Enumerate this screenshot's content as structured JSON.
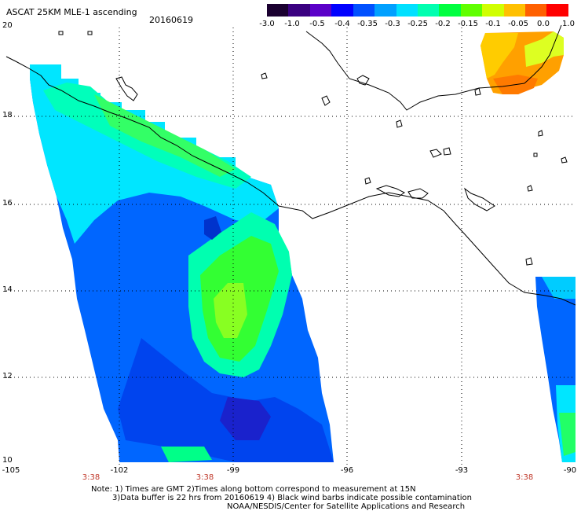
{
  "title": "ASCAT 25KM MLE-1 ascending",
  "date": "20160619",
  "colorbar": {
    "labels": [
      "-3.0",
      "-1.0",
      "-0.5",
      "-0.4",
      "-0.35",
      "-0.3",
      "-0.25",
      "-0.2",
      "-0.15",
      "-0.1",
      "-0.05",
      "0.0",
      "1.0"
    ],
    "colors": [
      "#1a0030",
      "#3a0080",
      "#5a00c8",
      "#0000ff",
      "#0050ff",
      "#00a0ff",
      "#00e0ff",
      "#00ffb0",
      "#00ff40",
      "#60ff00",
      "#d0ff00",
      "#ffc000",
      "#ff6000",
      "#ff0000"
    ]
  },
  "axes": {
    "x_labels": [
      "-105",
      "-102",
      "-99",
      "-96",
      "-93",
      "-90"
    ],
    "y_labels": [
      "20",
      "18",
      "16",
      "14",
      "12",
      "10"
    ],
    "time_labels": [
      "3:38",
      "3:38",
      "3:38"
    ]
  },
  "notes": {
    "line1": "Note: 1) Times are GMT 2)Times along bottom correspond to measurement at 15N",
    "line2": "3)Data buffer is 22 hrs from 20160619 4) Black wind barbs indicate possible contamination",
    "line3": "NOAA/NESDIS/Center for Satellite Applications and Research"
  },
  "map_features": {
    "swaths": [
      "main-swath",
      "northeast-swath",
      "east-swath"
    ],
    "coastline": "coastline-icon"
  }
}
